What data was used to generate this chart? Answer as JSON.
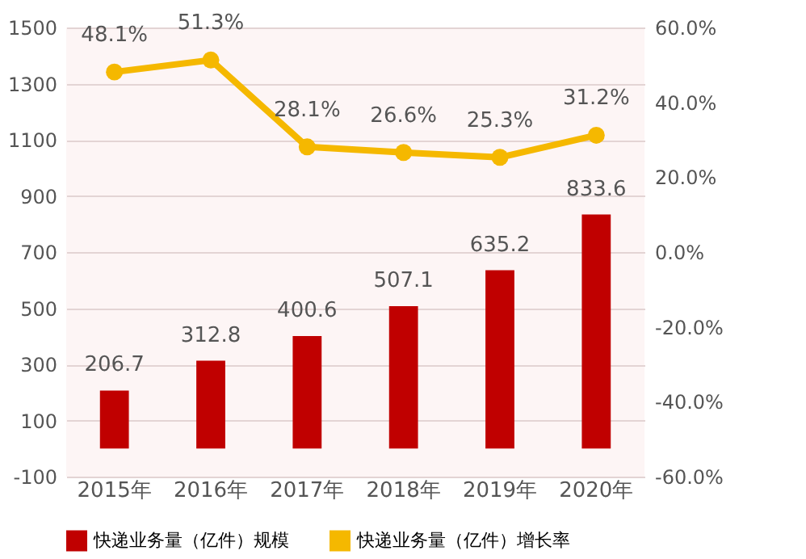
{
  "chart_data": {
    "type": "bar",
    "categories": [
      "2015年",
      "2016年",
      "2017年",
      "2018年",
      "2019年",
      "2020年"
    ],
    "series": [
      {
        "name": "快递业务量（亿件）规模",
        "color": "#c00000",
        "values": [
          206.7,
          312.8,
          400.6,
          507.1,
          635.2,
          833.6
        ]
      },
      {
        "name": "快递业务量（亿件）增长率",
        "type": "line",
        "axis": "y2",
        "color": "#f5b800",
        "values": [
          48.1,
          51.3,
          28.1,
          26.6,
          25.3,
          31.2
        ],
        "value_labels": [
          "48.1%",
          "51.3%",
          "28.1%",
          "26.6%",
          "25.3%",
          "31.2%"
        ]
      }
    ],
    "ylim": [
      -100,
      1500
    ],
    "yticks": [
      -100,
      100,
      300,
      500,
      700,
      900,
      1100,
      1300,
      1500
    ],
    "y2lim": [
      -60,
      60
    ],
    "y2ticks": [
      {
        "value": -60,
        "label": "-60.0%"
      },
      {
        "value": -40,
        "label": "-40.0%"
      },
      {
        "value": -20,
        "label": "-20.0%"
      },
      {
        "value": 0,
        "label": "0.0%"
      },
      {
        "value": 20,
        "label": "20.0%"
      },
      {
        "value": 40,
        "label": "40.0%"
      },
      {
        "value": 60,
        "label": "60.0%"
      }
    ],
    "data_labels": true,
    "grid": "y",
    "legend": "bottom",
    "marker": "circle"
  }
}
